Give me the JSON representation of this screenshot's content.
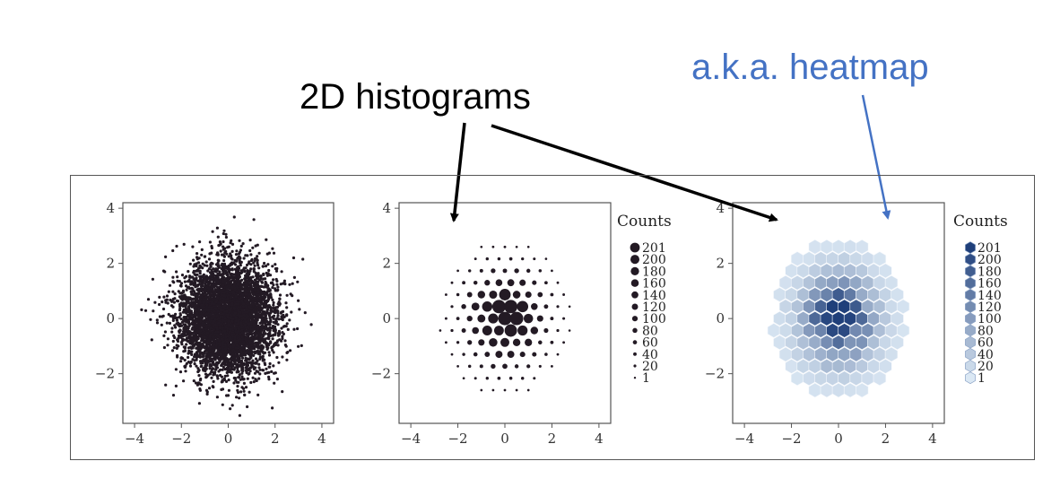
{
  "callouts": {
    "histograms_label": "2D histograms",
    "heatmap_label": "a.k.a. heatmap",
    "histograms_color": "#000000",
    "heatmap_color": "#4472c4"
  },
  "chart_data": [
    {
      "type": "scatter",
      "xlim": [
        -4.5,
        4.5
      ],
      "ylim": [
        -3.8,
        4.2
      ],
      "xticks": [
        -4,
        -2,
        0,
        2,
        4
      ],
      "yticks": [
        -2,
        0,
        2,
        4
      ],
      "xtick_labels": [
        "−4",
        "−2",
        "0",
        "2",
        "4"
      ],
      "ytick_labels": [
        "−2",
        "0",
        "2",
        "4"
      ],
      "distribution": "bivariate standard normal",
      "point_color": "#231a24"
    },
    {
      "type": "scatter",
      "style": "binned dot size",
      "xlim": [
        -4.5,
        4.5
      ],
      "ylim": [
        -3.8,
        4.2
      ],
      "xticks": [
        -4,
        -2,
        0,
        2,
        4
      ],
      "yticks": [
        -2,
        0,
        2,
        4
      ],
      "xtick_labels": [
        "−4",
        "−2",
        "0",
        "2",
        "4"
      ],
      "ytick_labels": [
        "−2",
        "0",
        "2",
        "4"
      ],
      "legend_title": "Counts",
      "legend_values": [
        "201",
        "200",
        "180",
        "160",
        "140",
        "120",
        "100",
        "80",
        "60",
        "40",
        "20",
        "1"
      ],
      "point_color": "#231a24"
    },
    {
      "type": "heatmap",
      "style": "hexbin",
      "xlim": [
        -4.5,
        4.5
      ],
      "ylim": [
        -3.8,
        4.2
      ],
      "xticks": [
        -4,
        -2,
        0,
        2,
        4
      ],
      "yticks": [
        -2,
        0,
        2,
        4
      ],
      "xtick_labels": [
        "−4",
        "−2",
        "0",
        "2",
        "4"
      ],
      "ytick_labels": [
        "−2",
        "0",
        "2",
        "4"
      ],
      "legend_title": "Counts",
      "legend_values": [
        "201",
        "200",
        "180",
        "160",
        "140",
        "120",
        "100",
        "80",
        "60",
        "40",
        "20",
        "1"
      ],
      "colormap_light": "#dbe8f4",
      "colormap_dark": "#1f3f7a"
    }
  ]
}
